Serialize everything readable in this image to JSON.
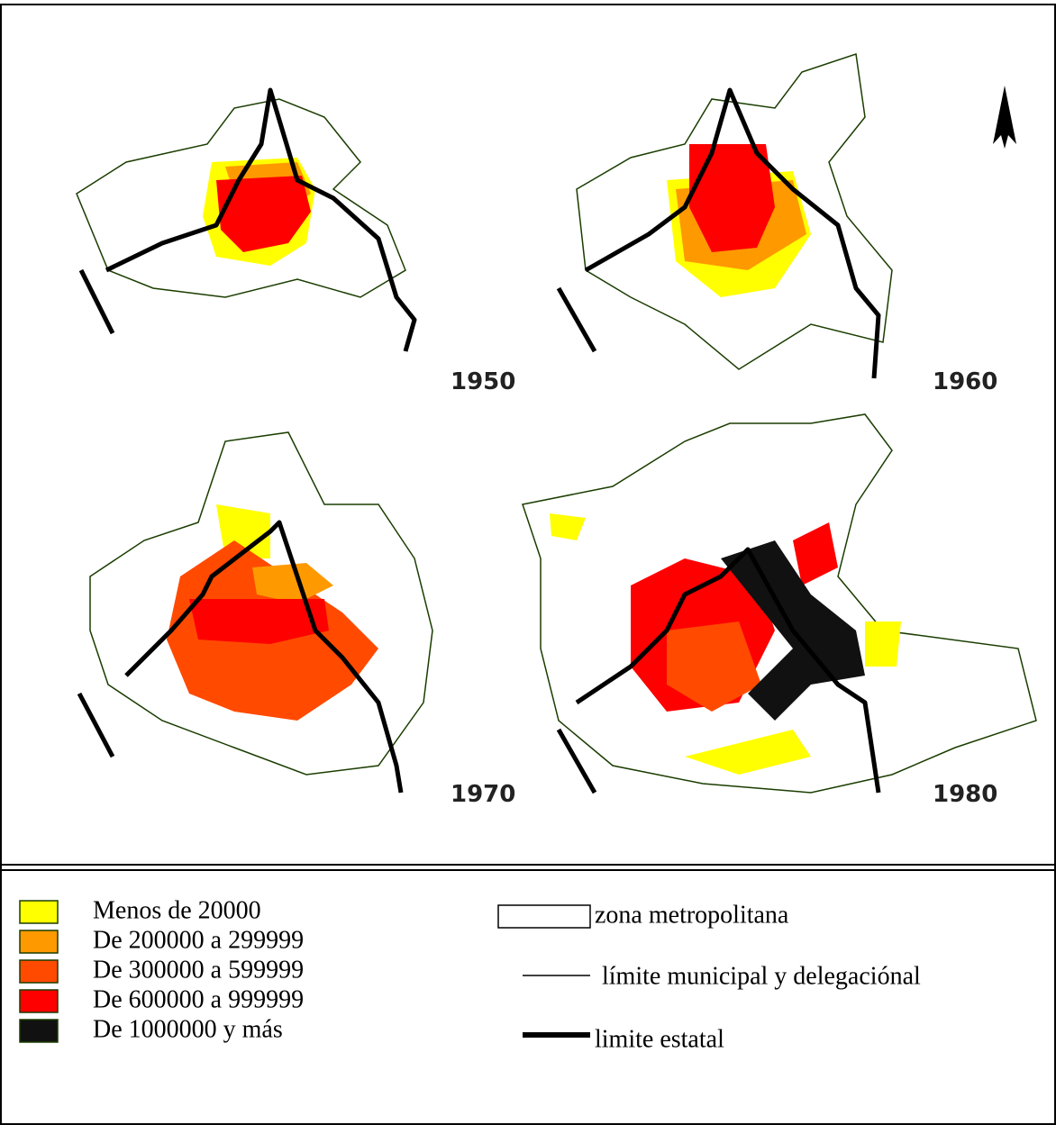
{
  "maps": [
    {
      "year": "1950"
    },
    {
      "year": "1960"
    },
    {
      "year": "1970"
    },
    {
      "year": "1980"
    }
  ],
  "legend": {
    "population": [
      {
        "label": "Menos de 20000",
        "color": "#ffff00"
      },
      {
        "label": "De 200000 a 299999",
        "color": "#ff9900"
      },
      {
        "label": "De 300000 a 599999",
        "color": "#ff4a00"
      },
      {
        "label": "De 600000 a 999999",
        "color": "#ff0000"
      },
      {
        "label": "De 1000000 y más",
        "color": "#111111"
      }
    ],
    "boundaries": [
      {
        "label": "zona metropolitana"
      },
      {
        "label": "límite municipal y delegaciónal"
      },
      {
        "label": "limite estatal"
      }
    ]
  }
}
